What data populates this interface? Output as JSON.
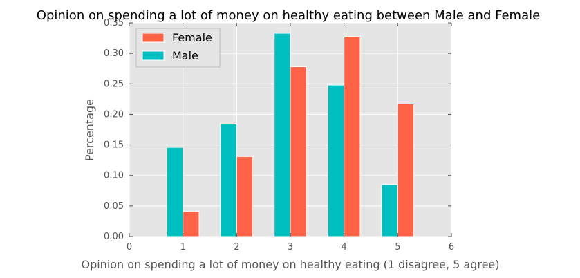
{
  "chart_data": {
    "type": "bar",
    "title": "Opinion on spending a lot of money on healthy eating between Male and Female",
    "xlabel": "Opinion on spending a lot of money on healthy eating (1 disagree, 5 agree)",
    "ylabel": "Percentage",
    "categories": [
      1,
      2,
      3,
      4,
      5
    ],
    "series": [
      {
        "name": "Male",
        "color": "#00BFC0",
        "values": [
          0.146,
          0.184,
          0.333,
          0.248,
          0.085
        ]
      },
      {
        "name": "Female",
        "color": "#FF6347",
        "values": [
          0.041,
          0.131,
          0.278,
          0.328,
          0.217
        ]
      }
    ],
    "xlim": [
      0,
      6
    ],
    "ylim": [
      0,
      0.35
    ],
    "xticks": [
      "0",
      "1",
      "2",
      "3",
      "4",
      "5",
      "6"
    ],
    "yticks": [
      "0.00",
      "0.05",
      "0.10",
      "0.15",
      "0.20",
      "0.25",
      "0.30",
      "0.35"
    ],
    "grid": true,
    "legend_position": "top-left",
    "background": "#E5E5E5"
  }
}
